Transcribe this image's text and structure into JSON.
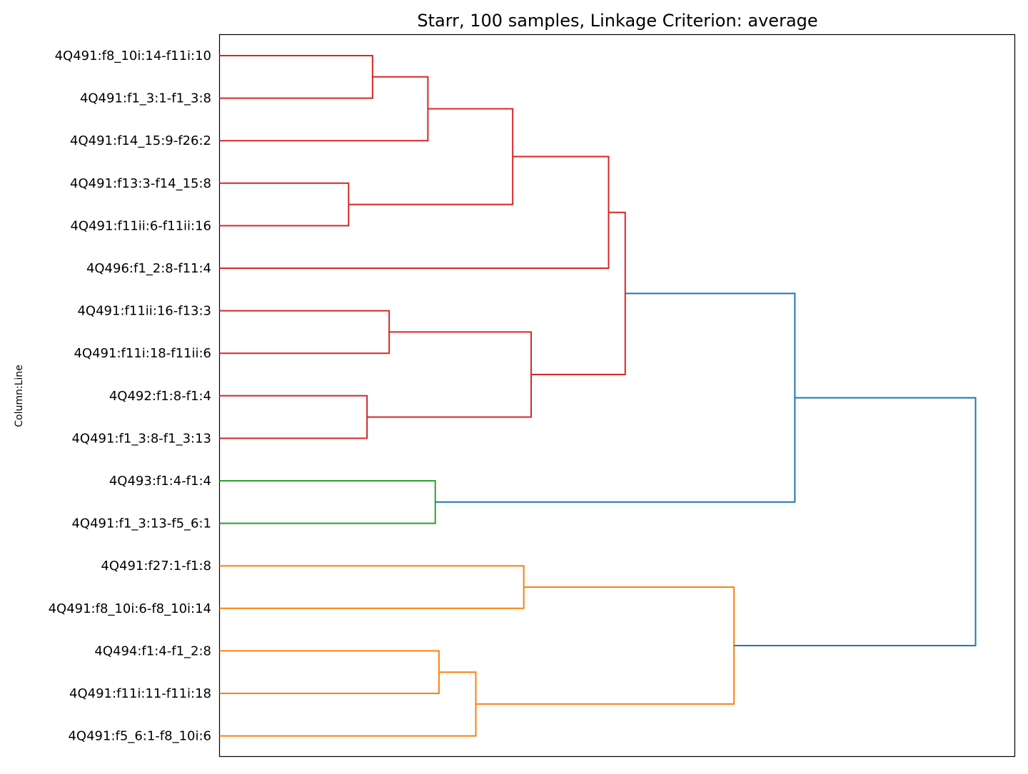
{
  "chart_data": {
    "type": "dendrogram",
    "title": "Starr, 100 samples, Linkage Criterion: average",
    "xlabel": "",
    "ylabel": "Column:Line",
    "orientation": "left",
    "xlim": [
      0,
      4.3
    ],
    "grid": false,
    "labels": [
      "4Q491:f8_10i:14-f11i:10",
      "4Q491:f1_3:1-f1_3:8",
      "4Q491:f14_15:9-f26:2",
      "4Q491:f13:3-f14_15:8",
      "4Q491:f11ii:6-f11ii:16",
      "4Q496:f1_2:8-f11:4",
      "4Q491:f11ii:16-f13:3",
      "4Q491:f11i:18-f11ii:6",
      "4Q492:f1:8-f1:4",
      "4Q491:f1_3:8-f1_3:13",
      "4Q493:f1:4-f1:4",
      "4Q491:f1_3:13-f5_6:1",
      "4Q491:f27:1-f1:8",
      "4Q491:f8_10i:6-f8_10i:14",
      "4Q494:f1:4-f1_2:8",
      "4Q491:f11i:11-f11i:18",
      "4Q491:f5_6:1-f8_10i:6"
    ],
    "colors": {
      "cluster_red": "#d62728",
      "cluster_green": "#2ca02c",
      "cluster_orange": "#ff7f0e",
      "link_above_threshold": "#1f77b4",
      "axes": "#000000"
    },
    "merges": [
      {
        "id": "n1",
        "children": [
          "L0",
          "L1"
        ],
        "height": 0.83,
        "color": "cluster_red"
      },
      {
        "id": "n2",
        "children": [
          "n1",
          "L2"
        ],
        "height": 1.13,
        "color": "cluster_red"
      },
      {
        "id": "n3",
        "children": [
          "L3",
          "L4"
        ],
        "height": 0.7,
        "color": "cluster_red"
      },
      {
        "id": "n4",
        "children": [
          "n2",
          "n3"
        ],
        "height": 1.59,
        "color": "cluster_red"
      },
      {
        "id": "n5",
        "children": [
          "n4",
          "L5"
        ],
        "height": 2.11,
        "color": "cluster_red"
      },
      {
        "id": "n6",
        "children": [
          "L6",
          "L7"
        ],
        "height": 0.92,
        "color": "cluster_red"
      },
      {
        "id": "n7",
        "children": [
          "L8",
          "L9"
        ],
        "height": 0.8,
        "color": "cluster_red"
      },
      {
        "id": "n8",
        "children": [
          "n6",
          "n7"
        ],
        "height": 1.69,
        "color": "cluster_red"
      },
      {
        "id": "n9",
        "children": [
          "n5",
          "n8"
        ],
        "height": 2.2,
        "color": "cluster_red"
      },
      {
        "id": "n10",
        "children": [
          "L10",
          "L11"
        ],
        "height": 1.17,
        "color": "cluster_green"
      },
      {
        "id": "n11",
        "children": [
          "n9",
          "n10"
        ],
        "height": 3.12,
        "color": "link_above_threshold"
      },
      {
        "id": "n12",
        "children": [
          "L12",
          "L13"
        ],
        "height": 1.65,
        "color": "cluster_orange"
      },
      {
        "id": "n13",
        "children": [
          "L14",
          "L15"
        ],
        "height": 1.19,
        "color": "cluster_orange"
      },
      {
        "id": "n14",
        "children": [
          "n13",
          "L16"
        ],
        "height": 1.39,
        "color": "cluster_orange"
      },
      {
        "id": "n15",
        "children": [
          "n12",
          "n14"
        ],
        "height": 2.79,
        "color": "cluster_orange"
      },
      {
        "id": "n16",
        "children": [
          "n11",
          "n15"
        ],
        "height": 4.1,
        "color": "link_above_threshold"
      }
    ]
  }
}
